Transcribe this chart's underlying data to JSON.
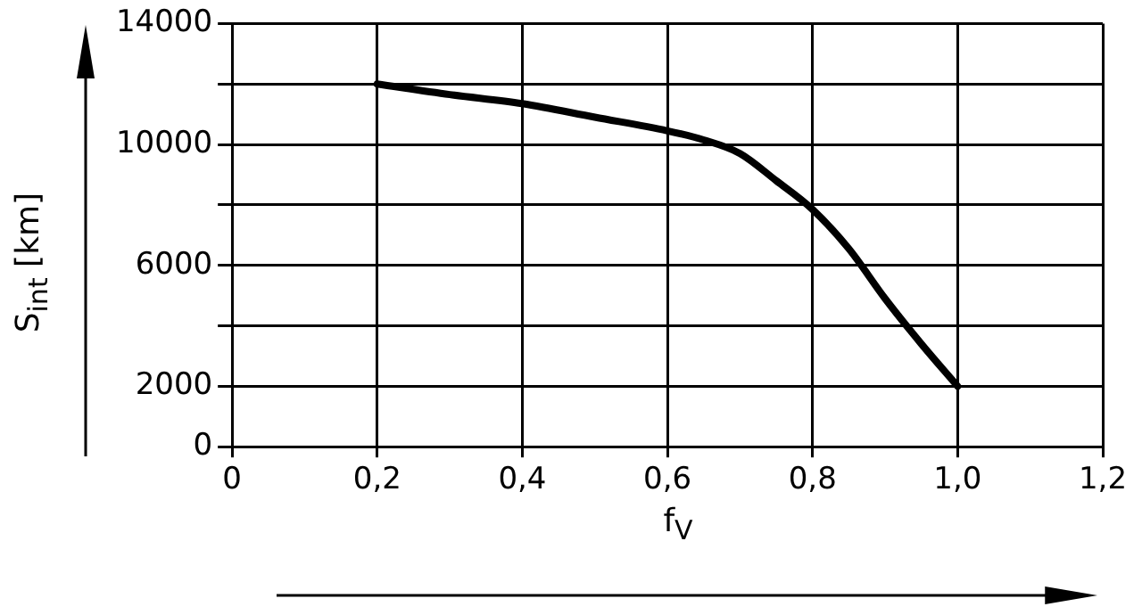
{
  "chart_data": {
    "type": "line",
    "xlabel": "f$_{V}$",
    "ylabel": "S$_{int}$ [km]",
    "x": [
      0.2,
      0.3,
      0.4,
      0.5,
      0.6,
      0.65,
      0.7,
      0.75,
      0.8,
      0.85,
      0.9,
      0.95,
      1.0
    ],
    "series": [
      {
        "color": "#000000",
        "values": [
          12000,
          11650,
          11350,
          10900,
          10450,
          10150,
          9700,
          8800,
          7850,
          6550,
          4900,
          3400,
          2000
        ]
      }
    ],
    "xlim": [
      0,
      1.2
    ],
    "xticks": [
      0,
      {
        "value": 0.2,
        "label": "0,2"
      },
      {
        "value": 0.4,
        "label": "0,4"
      },
      {
        "value": 0.6,
        "label": "0,6"
      },
      {
        "value": 0.8,
        "label": "0,8"
      },
      {
        "value": 1.0,
        "label": "1,0"
      },
      {
        "value": 1.2,
        "label": "1,2"
      }
    ],
    "ylim": [
      0,
      14000
    ],
    "yticks": [
      0,
      2000,
      {
        "value": 4000,
        "label": null
      },
      6000,
      {
        "value": 8000,
        "label": null
      },
      10000,
      {
        "value": 12000,
        "label": null
      },
      14000
    ],
    "grid": true,
    "legend": false,
    "marker": "none",
    "line_style": "solid"
  }
}
